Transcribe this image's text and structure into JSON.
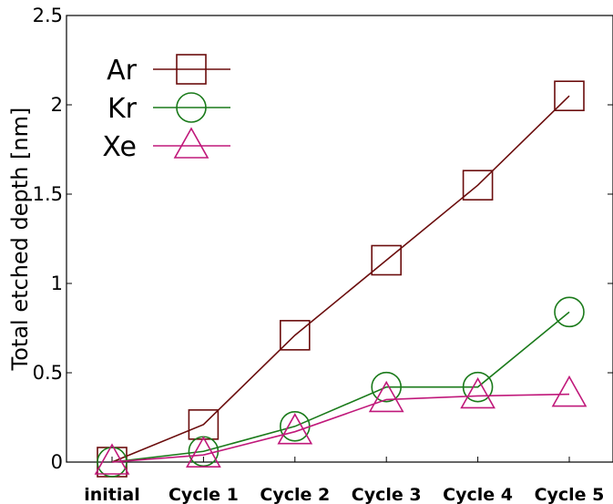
{
  "chart_data": {
    "type": "line",
    "categories": [
      "initial",
      "Cycle 1",
      "Cycle 2",
      "Cycle 3",
      "Cycle 4",
      "Cycle 5"
    ],
    "ylabel": "Total etched depth [nm]",
    "xlabel": "",
    "ylim": [
      0,
      2.5
    ],
    "yticks": [
      0,
      0.5,
      1,
      1.5,
      2,
      2.5
    ],
    "ytick_labels": [
      "0",
      "0.5",
      "1",
      "1.5",
      "2",
      "2.5"
    ],
    "grid": false,
    "legend_position": "top-left",
    "series": [
      {
        "name": "Ar",
        "color": "#6b0d0d",
        "marker": "square",
        "values": [
          0.0,
          0.21,
          0.71,
          1.13,
          1.55,
          2.05
        ]
      },
      {
        "name": "Kr",
        "color": "#1a7a1a",
        "marker": "circle",
        "values": [
          0.0,
          0.06,
          0.2,
          0.42,
          0.42,
          0.84
        ]
      },
      {
        "name": "Xe",
        "color": "#c0187a",
        "marker": "triangle",
        "values": [
          0.0,
          0.04,
          0.17,
          0.35,
          0.37,
          0.38
        ]
      }
    ]
  }
}
